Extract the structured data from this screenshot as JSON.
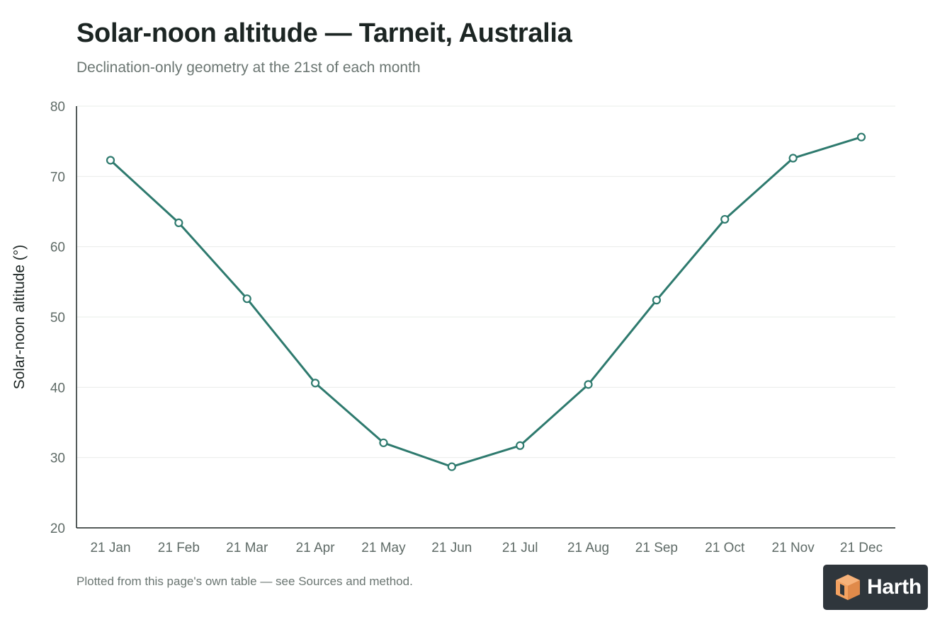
{
  "chart_data": {
    "type": "line",
    "title": "Solar-noon altitude — Tarneit, Australia",
    "subtitle": "Declination-only geometry at the 21st of each month",
    "xlabel": "",
    "ylabel": "Solar-noon altitude (°)",
    "categories": [
      "21 Jan",
      "21 Feb",
      "21 Mar",
      "21 Apr",
      "21 May",
      "21 Jun",
      "21 Jul",
      "21 Aug",
      "21 Sep",
      "21 Oct",
      "21 Nov",
      "21 Dec"
    ],
    "series": [
      {
        "values": [
          72.3,
          63.4,
          52.6,
          40.6,
          32.1,
          28.7,
          31.7,
          40.4,
          52.4,
          63.9,
          72.6,
          75.6
        ]
      }
    ],
    "ylim": [
      20,
      80
    ],
    "yticks": [
      20,
      30,
      40,
      50,
      60,
      70,
      80
    ],
    "grid": true,
    "legend": "none",
    "line_color": "#2e7a6e",
    "footnote": "Plotted from this page's own table — see Sources and method."
  },
  "brand": {
    "name": "Harth",
    "background": "#2f363c",
    "accent": "#f4a261",
    "icon": "cube-logo-icon"
  }
}
